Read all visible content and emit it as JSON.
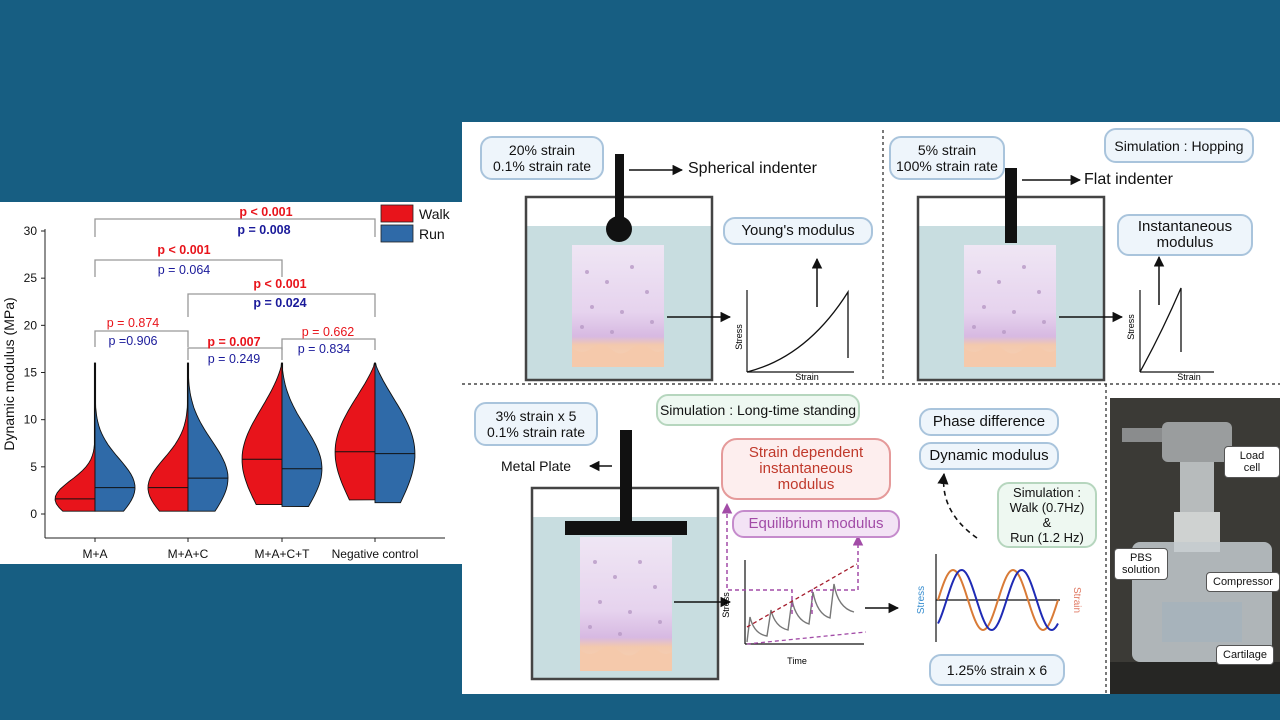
{
  "violin_chart": {
    "legend": [
      {
        "label": "Walk",
        "color": "#e8141b"
      },
      {
        "label": "Run",
        "color": "#2f6aa8"
      }
    ],
    "ylabel": "Dynamic modulus (MPa)",
    "yticks": [
      "0",
      "5",
      "10",
      "15",
      "20",
      "25",
      "30"
    ],
    "categories": [
      "M+A",
      "M+A+C",
      "M+A+C+T",
      "Negative control"
    ],
    "brackets": [
      {
        "walk": "p < 0.001",
        "run": "p = 0.008"
      },
      {
        "walk": "p < 0.001",
        "run": "p = 0.064"
      },
      {
        "walk": "p < 0.001",
        "run": "p = 0.024"
      },
      {
        "walk": "p = 0.874",
        "run": "p =0.906"
      },
      {
        "walk": "p = 0.007",
        "run": "p = 0.249"
      },
      {
        "walk": "p = 0.662",
        "run": "p = 0.834"
      }
    ]
  },
  "chart_data": {
    "type": "violin",
    "categories": [
      "M+A",
      "M+A+C",
      "M+A+C+T",
      "Negative control"
    ],
    "ylabel": "Dynamic modulus (MPa)",
    "ylim": [
      0,
      30
    ],
    "series": [
      {
        "name": "Walk",
        "median": [
          1.6,
          2.8,
          5.8,
          6.6
        ],
        "min": [
          0.3,
          0.3,
          1.0,
          1.5
        ],
        "max": [
          16,
          16,
          16,
          16
        ]
      },
      {
        "name": "Run",
        "median": [
          2.8,
          3.8,
          4.8,
          6.4
        ],
        "min": [
          0.3,
          0.3,
          0.8,
          1.2
        ],
        "max": [
          16,
          16,
          16,
          16
        ]
      }
    ]
  },
  "panel_tl": {
    "condition": [
      "20% strain",
      "0.1% strain rate"
    ],
    "indenter": "Spherical indenter",
    "modulus": "Young's modulus",
    "graph_y": "Stress",
    "graph_x": "Strain"
  },
  "panel_tr": {
    "condition": [
      "5% strain",
      "100% strain rate"
    ],
    "simulation": "Simulation : Hopping",
    "indenter": "Flat indenter",
    "modulus": [
      "Instantaneous",
      "modulus"
    ],
    "graph_y": "Stress",
    "graph_x": "Strain"
  },
  "panel_bottom": {
    "condition": [
      "3% strain x 5",
      "0.1% strain rate"
    ],
    "simulation": "Simulation : Long-time standing",
    "plate": "Metal Plate",
    "strain_dependent": [
      "Strain dependent",
      "instantaneous",
      "modulus"
    ],
    "equilibrium": "Equilibrium modulus",
    "phase": "Phase difference",
    "dynamic": "Dynamic modulus",
    "sim_walk_run": [
      "Simulation :",
      "Walk (0.7Hz)",
      "&",
      "Run (1.2 Hz)"
    ],
    "cyclic": "1.25% strain x 6",
    "relax_y": "Stress",
    "relax_x": "Time",
    "sine_stress": "Stress",
    "sine_strain": "Strain"
  },
  "photo": {
    "labels": [
      "Load cell",
      "PBS solution",
      "Compressor",
      "Cartilage"
    ]
  }
}
